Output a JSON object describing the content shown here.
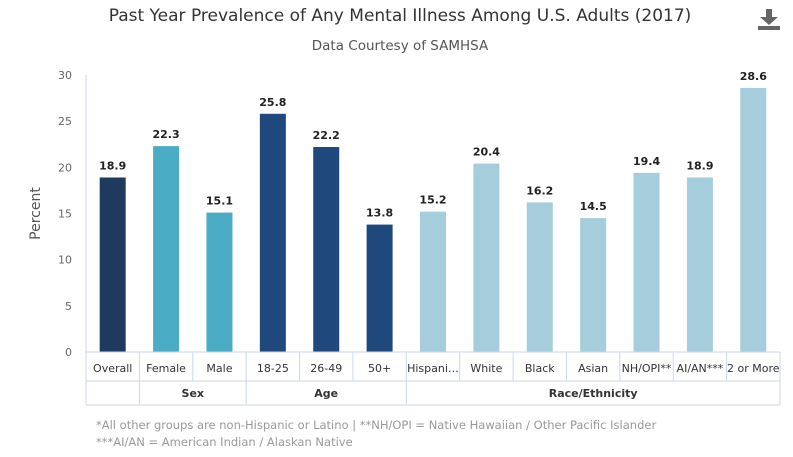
{
  "title": "Past Year Prevalence of Any Mental Illness Among U.S. Adults (2017)",
  "subtitle": "Data Courtesy of SAMHSA",
  "download_icon": "download-icon",
  "footnote": {
    "line1": "*All other groups are non-Hispanic or Latino | **NH/OPI = Native Hawaiian / Other Pacific Islander",
    "line2": "***AI/AN = American Indian / Alaskan Native"
  },
  "chart_data": {
    "type": "bar",
    "title": "Past Year Prevalence of Any Mental Illness Among U.S. Adults (2017)",
    "subtitle": "Data Courtesy of SAMHSA",
    "ylabel": "Percent",
    "ylim": [
      0,
      30
    ],
    "yticks": [
      0,
      5,
      10,
      15,
      20,
      25,
      30
    ],
    "grid": false,
    "categories": [
      "Overall",
      "Female",
      "Male",
      "18-25",
      "26-49",
      "50+",
      "Hispani…",
      "White",
      "Black",
      "Asian",
      "NH/OPI**",
      "AI/AN***",
      "2 or More"
    ],
    "values": [
      18.9,
      22.3,
      15.1,
      25.8,
      22.2,
      13.8,
      15.2,
      20.4,
      16.2,
      14.5,
      19.4,
      18.9,
      28.6
    ],
    "value_labels": [
      "18.9",
      "22.3",
      "15.1",
      "25.8",
      "22.2",
      "13.8",
      "15.2",
      "20.4",
      "16.2",
      "14.5",
      "19.4",
      "18.9",
      "28.6"
    ],
    "groups": [
      {
        "label": "",
        "categories": [
          "Overall"
        ]
      },
      {
        "label": "Sex",
        "categories": [
          "Female",
          "Male"
        ]
      },
      {
        "label": "Age",
        "categories": [
          "18-25",
          "26-49",
          "50+"
        ]
      },
      {
        "label": "Race/Ethnicity",
        "categories": [
          "Hispani…",
          "White",
          "Black",
          "Asian",
          "NH/OPI**",
          "AI/AN***",
          "2 or More"
        ]
      }
    ],
    "colors": [
      "#1f3a5f",
      "#4bacc6",
      "#4bacc6",
      "#1f497d",
      "#1f497d",
      "#1f497d",
      "#a5cddb",
      "#a5cddb",
      "#a5cddb",
      "#a5cddb",
      "#a5cddb",
      "#a5cddb",
      "#a5cddb"
    ]
  }
}
